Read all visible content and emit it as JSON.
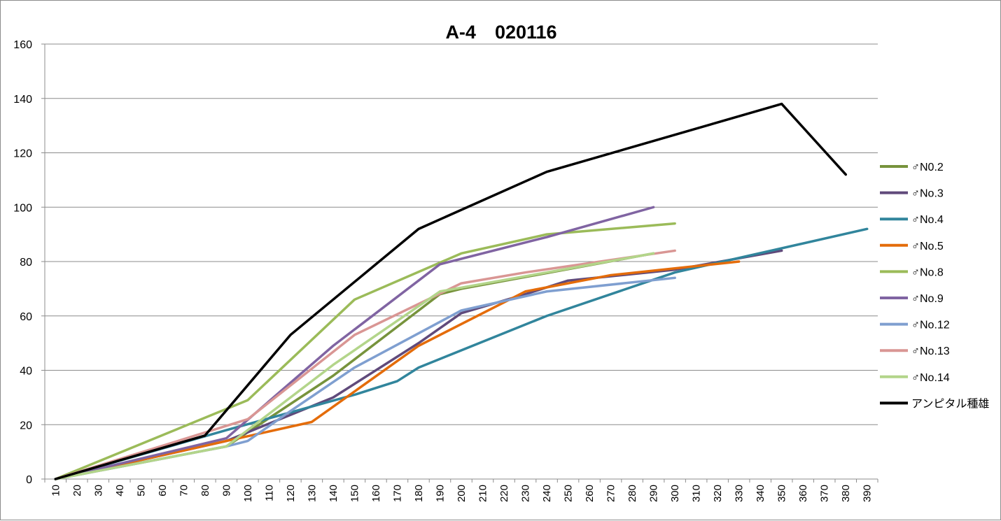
{
  "chart_data": {
    "type": "line",
    "title": "A-4　020116",
    "xlabel": "",
    "ylabel": "",
    "ylim": [
      0,
      160
    ],
    "yticks": [
      0,
      20,
      40,
      60,
      80,
      100,
      120,
      140,
      160
    ],
    "categories": [
      10,
      20,
      30,
      40,
      50,
      60,
      70,
      80,
      90,
      100,
      110,
      120,
      130,
      140,
      150,
      160,
      170,
      180,
      190,
      200,
      210,
      220,
      230,
      240,
      250,
      260,
      270,
      280,
      290,
      300,
      310,
      320,
      330,
      340,
      350,
      360,
      370,
      380,
      390
    ],
    "grid": "horizontal",
    "legend_position": "right",
    "series": [
      {
        "name": "♂N0.2",
        "color": "#77933c",
        "points": [
          [
            10,
            0
          ],
          [
            90,
            12
          ],
          [
            140,
            38
          ],
          [
            180,
            62
          ],
          [
            190,
            68
          ],
          [
            200,
            70
          ],
          [
            290,
            83
          ]
        ]
      },
      {
        "name": "♂No.3",
        "color": "#604a7b",
        "points": [
          [
            10,
            0
          ],
          [
            90,
            14
          ],
          [
            140,
            30
          ],
          [
            180,
            50
          ],
          [
            200,
            61
          ],
          [
            230,
            68
          ],
          [
            250,
            73
          ],
          [
            300,
            77
          ],
          [
            350,
            84
          ]
        ]
      },
      {
        "name": "♂No.4",
        "color": "#31859c",
        "points": [
          [
            10,
            0
          ],
          [
            90,
            18
          ],
          [
            150,
            31
          ],
          [
            170,
            36
          ],
          [
            180,
            41
          ],
          [
            240,
            60
          ],
          [
            300,
            76
          ],
          [
            390,
            92
          ]
        ]
      },
      {
        "name": "♂No.5",
        "color": "#e46c0a",
        "points": [
          [
            10,
            0
          ],
          [
            90,
            14
          ],
          [
            130,
            21
          ],
          [
            180,
            49
          ],
          [
            230,
            69
          ],
          [
            270,
            75
          ],
          [
            330,
            80
          ]
        ]
      },
      {
        "name": "♂No.8",
        "color": "#9bbb59",
        "points": [
          [
            10,
            0
          ],
          [
            100,
            29
          ],
          [
            150,
            66
          ],
          [
            200,
            83
          ],
          [
            240,
            90
          ],
          [
            300,
            94
          ]
        ]
      },
      {
        "name": "♂No.9",
        "color": "#8064a2",
        "points": [
          [
            10,
            0
          ],
          [
            90,
            15
          ],
          [
            140,
            49
          ],
          [
            190,
            79
          ],
          [
            240,
            89
          ],
          [
            290,
            100
          ]
        ]
      },
      {
        "name": "♂No.12",
        "color": "#7f9fd0",
        "points": [
          [
            10,
            0
          ],
          [
            90,
            12
          ],
          [
            100,
            14
          ],
          [
            120,
            25
          ],
          [
            150,
            41
          ],
          [
            200,
            62
          ],
          [
            240,
            69
          ],
          [
            300,
            74
          ]
        ]
      },
      {
        "name": "♂No.13",
        "color": "#d99694",
        "points": [
          [
            10,
            0
          ],
          [
            100,
            22
          ],
          [
            150,
            53
          ],
          [
            200,
            72
          ],
          [
            230,
            76
          ],
          [
            300,
            84
          ]
        ]
      },
      {
        "name": "♂No.14",
        "color": "#b3d58a",
        "points": [
          [
            10,
            0
          ],
          [
            90,
            12
          ],
          [
            140,
            42
          ],
          [
            190,
            69
          ],
          [
            240,
            76
          ],
          [
            290,
            83
          ]
        ]
      },
      {
        "name": "アンピタル種雄",
        "color": "#000000",
        "points": [
          [
            10,
            0
          ],
          [
            80,
            16
          ],
          [
            120,
            53
          ],
          [
            180,
            92
          ],
          [
            240,
            113
          ],
          [
            350,
            138
          ],
          [
            380,
            112
          ]
        ]
      }
    ]
  }
}
